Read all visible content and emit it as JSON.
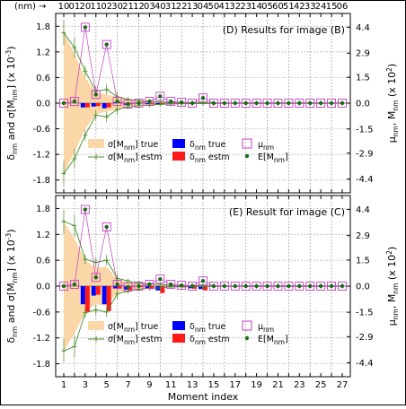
{
  "chart_data": [
    {
      "type": "bar",
      "title": "(D) Results for image (B)",
      "x_top_prefix": "(nm) →",
      "x_top_labels": [
        "10",
        "01",
        "20",
        "11",
        "02",
        "30",
        "21",
        "12",
        "03",
        "40",
        "31",
        "22",
        "13",
        "04",
        "50",
        "41",
        "32",
        "23",
        "14",
        "05",
        "60",
        "51",
        "42",
        "33",
        "24",
        "15",
        "06"
      ],
      "ylabel_left": "δnm and σ[Mnm] (x 10^-3)",
      "ylabel_right": "μnm, Mnm (x 10^2)",
      "ylim_left": [
        -2.1,
        2.1
      ],
      "yticks_left": [
        "1.8",
        "1.2",
        "0.6",
        "0.0",
        "-0.6",
        "-1.2",
        "-1.8"
      ],
      "ylim_right": [
        -5.2,
        5.2
      ],
      "yticks_right": [
        "4.4",
        "2.9",
        "1.5",
        "0.0",
        "-1.5",
        "-2.9",
        "-4.4"
      ],
      "x": [
        1,
        2,
        3,
        4,
        5,
        6,
        7,
        8,
        9,
        10,
        11,
        12,
        13,
        14,
        15,
        16,
        17,
        18,
        19,
        20,
        21,
        22,
        23,
        24,
        25,
        26,
        27
      ],
      "series": [
        {
          "name": "σ[Mnm] true",
          "values": [
            1.65,
            1.15,
            0.6,
            0.25,
            0.2,
            0.15,
            0.07,
            0.05,
            0.04,
            0.03,
            0.02,
            0.015,
            0.012,
            0.01,
            0.005,
            0.005,
            0.005,
            0.005,
            0.005,
            0.005,
            0.005,
            0.005,
            0.005,
            0.005,
            0.005,
            0.005,
            0.005
          ]
        },
        {
          "name": "σ[Mnm] estm",
          "values": [
            1.65,
            1.3,
            0.75,
            0.28,
            0.32,
            0.15,
            0.09,
            0.06,
            0.045,
            0.03,
            0.02,
            0.015,
            0.012,
            0.01,
            0.005,
            0.005,
            0.005,
            0.005,
            0.005,
            0.005,
            0.005,
            0.005,
            0.005,
            0.005,
            0.005,
            0.005,
            0.005
          ]
        },
        {
          "name": "δnm true",
          "values": [
            0,
            0,
            -0.1,
            -0.08,
            -0.12,
            0.02,
            -0.04,
            0.01,
            -0.02,
            -0.03,
            0.01,
            0,
            -0.01,
            0,
            0,
            0,
            0,
            0,
            0,
            0,
            0,
            0,
            0,
            0,
            0,
            0,
            0
          ]
        },
        {
          "name": "δnm estm",
          "values": [
            0,
            0,
            -0.1,
            -0.07,
            -0.1,
            0.02,
            -0.03,
            0.01,
            -0.02,
            -0.03,
            0.01,
            0,
            -0.01,
            0.02,
            0,
            0,
            0,
            0,
            0,
            0,
            0,
            0,
            0,
            0,
            0,
            0,
            0
          ]
        },
        {
          "name": "μnm",
          "values": [
            0,
            0.1,
            4.4,
            0.5,
            3.4,
            0.1,
            -0.05,
            0,
            0.1,
            0.4,
            0.1,
            0.05,
            0,
            0.3,
            0,
            0,
            0,
            0,
            0,
            0,
            0,
            0,
            0,
            0,
            0,
            0,
            0
          ]
        },
        {
          "name": "E[Mnm]",
          "values": [
            0,
            0.1,
            4.4,
            0.5,
            3.4,
            0.1,
            -0.05,
            0,
            0.1,
            0.4,
            0.1,
            0.05,
            0,
            0.3,
            0,
            0,
            0,
            0,
            0,
            0,
            0,
            0,
            0,
            0,
            0,
            0,
            0
          ]
        }
      ],
      "legend_position": "bottom-center"
    },
    {
      "type": "bar",
      "title": "(E) Result for image (C)",
      "xlabel": "Moment index",
      "xticks": [
        "1",
        "3",
        "5",
        "7",
        "9",
        "11",
        "13",
        "15",
        "17",
        "19",
        "21",
        "23",
        "25",
        "27"
      ],
      "ylabel_left": "δnm and σ[Mnm] (x 10^-3)",
      "ylabel_right": "μnm, Mnm (x 10^2)",
      "ylim_left": [
        -2.1,
        2.1
      ],
      "yticks_left": [
        "1.8",
        "1.2",
        "0.6",
        "0.0",
        "-0.6",
        "-1.2",
        "-1.8"
      ],
      "ylim_right": [
        -5.2,
        5.2
      ],
      "yticks_right": [
        "4.4",
        "2.9",
        "1.5",
        "0.0",
        "-1.5",
        "-2.9",
        "-4.4"
      ],
      "x": [
        1,
        2,
        3,
        4,
        5,
        6,
        7,
        8,
        9,
        10,
        11,
        12,
        13,
        14,
        15,
        16,
        17,
        18,
        19,
        20,
        21,
        22,
        23,
        24,
        25,
        26,
        27
      ],
      "series": [
        {
          "name": "σ[Mnm] true",
          "values": [
            1.5,
            1.1,
            0.6,
            0.42,
            0.45,
            0.15,
            0.1,
            0.06,
            0.04,
            0.03,
            0.02,
            0.015,
            0.012,
            0.01,
            0.005,
            0.005,
            0.005,
            0.005,
            0.005,
            0.005,
            0.005,
            0.005,
            0.005,
            0.005,
            0.005,
            0.005,
            0.005
          ]
        },
        {
          "name": "σ[Mnm] estm",
          "values": [
            1.5,
            1.4,
            0.62,
            0.55,
            0.6,
            0.18,
            0.12,
            0.07,
            0.05,
            0.04,
            0.02,
            0.015,
            0.012,
            0.01,
            0.005,
            0.005,
            0.005,
            0.005,
            0.005,
            0.005,
            0.005,
            0.005,
            0.005,
            0.005,
            0.005,
            0.005,
            0.005
          ]
        },
        {
          "name": "δnm true",
          "values": [
            0,
            0,
            -0.42,
            -0.22,
            -0.42,
            -0.05,
            -0.08,
            -0.01,
            -0.06,
            -0.1,
            0,
            -0.02,
            -0.05,
            -0.07,
            0,
            0,
            0,
            0,
            0,
            0,
            0,
            0,
            0,
            0,
            0,
            0,
            0
          ]
        },
        {
          "name": "δnm estm",
          "values": [
            0,
            0,
            -0.6,
            -0.2,
            -0.58,
            -0.05,
            -0.1,
            -0.02,
            -0.07,
            -0.16,
            0,
            -0.03,
            -0.06,
            -0.1,
            0,
            0,
            0,
            0,
            0,
            0,
            0,
            0,
            0,
            0,
            0,
            0,
            0
          ]
        },
        {
          "name": "μnm",
          "values": [
            0,
            0.1,
            4.4,
            0.5,
            3.4,
            0.1,
            -0.05,
            0,
            0.1,
            0.4,
            0.1,
            0.05,
            0,
            0.3,
            0,
            0,
            0,
            0,
            0,
            0,
            0,
            0,
            0,
            0,
            0,
            0,
            0
          ]
        },
        {
          "name": "E[Mnm]",
          "values": [
            0,
            0.1,
            4.4,
            0.5,
            3.4,
            0.1,
            -0.05,
            0,
            0.1,
            0.4,
            0.1,
            0.05,
            0,
            0.3,
            0,
            0,
            0,
            0,
            0,
            0,
            0,
            0,
            0,
            0,
            0,
            0,
            0
          ]
        }
      ],
      "legend_position": "bottom-center"
    }
  ],
  "colors": {
    "sigma_true": "#fbd6a6",
    "sigma_estm": "#4c8c2b",
    "delta_true": "#0000ff",
    "delta_estm": "#ff1a1a",
    "mu": "#c040c0",
    "e_m": "#1a6b1a"
  }
}
